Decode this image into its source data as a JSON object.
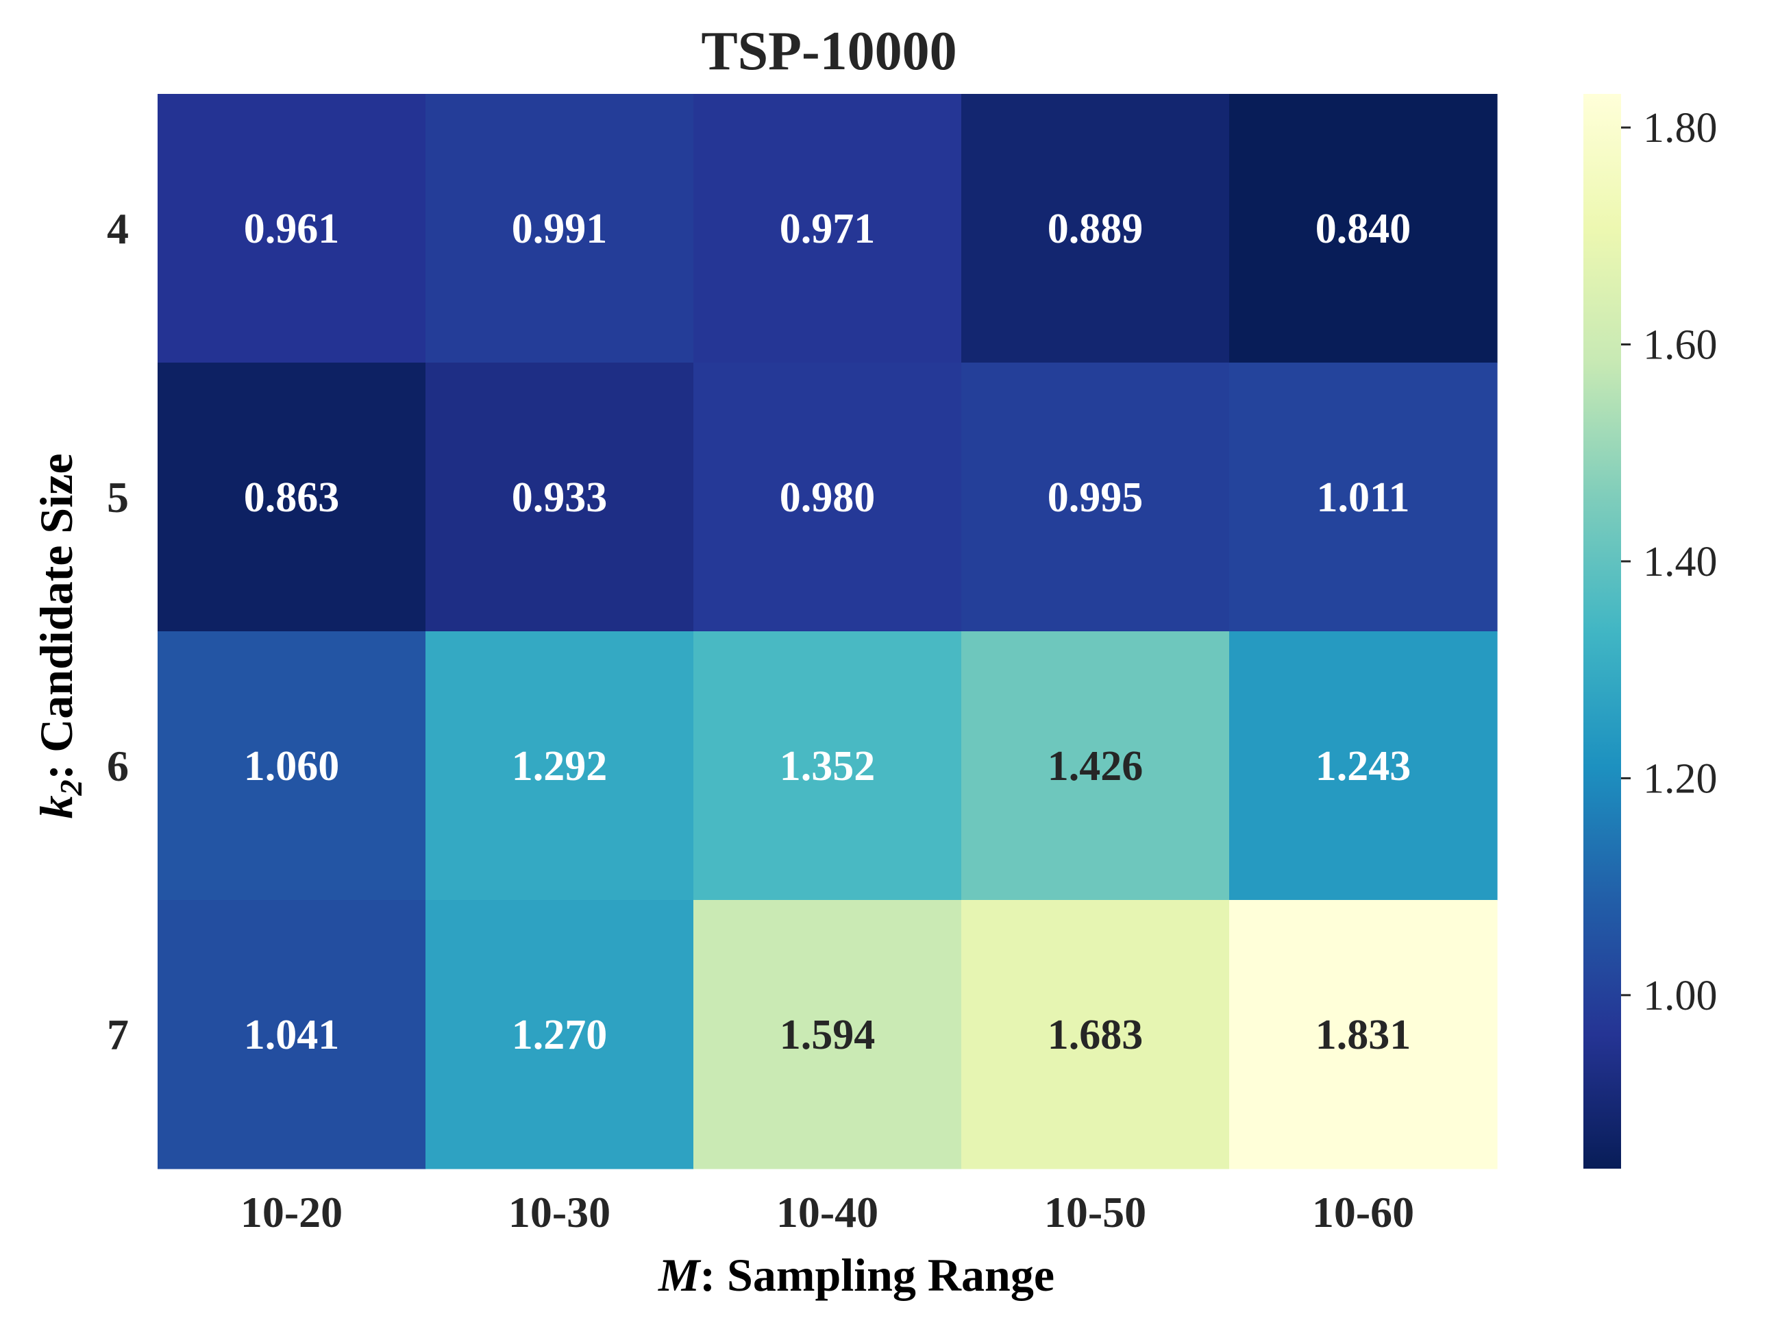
{
  "chart_data": {
    "type": "heatmap",
    "title": "TSP-10000",
    "xlabel": {
      "var": "M",
      "text": ": Sampling Range"
    },
    "ylabel": {
      "var": "k",
      "sub": "2",
      "text": ": Candidate Size"
    },
    "x_categories": [
      "10-20",
      "10-30",
      "10-40",
      "10-50",
      "10-60"
    ],
    "y_categories": [
      "4",
      "5",
      "6",
      "7"
    ],
    "values": [
      [
        0.961,
        0.991,
        0.971,
        0.889,
        0.84
      ],
      [
        0.863,
        0.933,
        0.98,
        0.995,
        1.011
      ],
      [
        1.06,
        1.292,
        1.352,
        1.426,
        1.243
      ],
      [
        1.041,
        1.27,
        1.594,
        1.683,
        1.831
      ]
    ],
    "value_labels": [
      [
        "0.961",
        "0.991",
        "0.971",
        "0.889",
        "0.840"
      ],
      [
        "0.863",
        "0.933",
        "0.980",
        "0.995",
        "1.011"
      ],
      [
        "1.060",
        "1.292",
        "1.352",
        "1.426",
        "1.243"
      ],
      [
        "1.041",
        "1.270",
        "1.594",
        "1.683",
        "1.831"
      ]
    ],
    "colorbar": {
      "range": [
        0.84,
        1.831
      ],
      "ticks": [
        1.0,
        1.2,
        1.4,
        1.6,
        1.8
      ],
      "tick_labels": [
        "1.00",
        "1.20",
        "1.40",
        "1.60",
        "1.80"
      ],
      "colormap": "YlGnBu",
      "colormap_stops": [
        "#ffffd9",
        "#edf8b1",
        "#c7e9b4",
        "#7fcdbb",
        "#41b6c4",
        "#1d91c0",
        "#225ea8",
        "#253494",
        "#081d58"
      ]
    },
    "text_colors": {
      "light": "#ffffff",
      "dark": "#262626"
    }
  }
}
